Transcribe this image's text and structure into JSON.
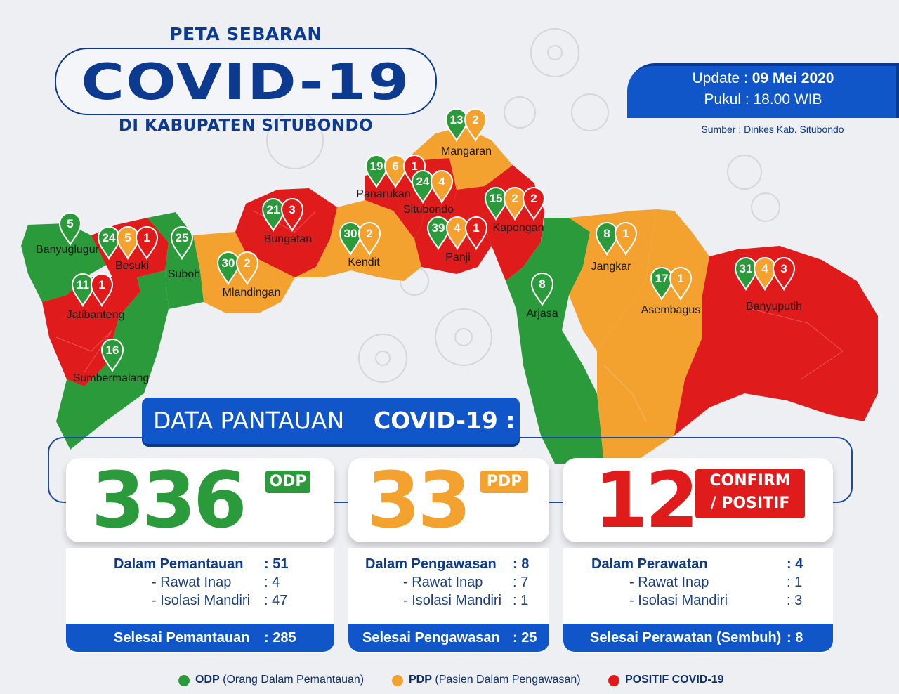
{
  "header": {
    "title_top": "PETA SEBARAN",
    "title_main": "COVID-19",
    "title_bottom": "DI KABUPATEN SITUBONDO"
  },
  "update": {
    "label": "Update : ",
    "date": "09 Mei 2020",
    "time_label": "Pukul : 18.00 WIB",
    "source": "Sumber : Dinkes Kab. Situbondo"
  },
  "colors": {
    "odp": "#2a9a3a",
    "pdp": "#f3a12f",
    "positif": "#e01b1b",
    "navy": "#0b3a8f",
    "blue": "#1156c9"
  },
  "districts": [
    {
      "name": "Banyuglugur",
      "status": "odp",
      "odp": "5"
    },
    {
      "name": "Besuki",
      "status": "positif",
      "odp": "24",
      "pdp": "5",
      "positif": "1"
    },
    {
      "name": "Suboh",
      "status": "odp",
      "odp": "25"
    },
    {
      "name": "Jatibanteng",
      "status": "positif",
      "odp": "11",
      "positif": "1"
    },
    {
      "name": "Sumbermalang",
      "status": "odp",
      "odp": "16"
    },
    {
      "name": "Mlandingan",
      "status": "pdp",
      "odp": "30",
      "pdp": "2"
    },
    {
      "name": "Bungatan",
      "status": "positif",
      "odp": "21",
      "positif": "3"
    },
    {
      "name": "Kendit",
      "status": "pdp",
      "odp": "30",
      "pdp": "2"
    },
    {
      "name": "Panarukan",
      "status": "positif",
      "odp": "19",
      "pdp": "6",
      "positif": "1"
    },
    {
      "name": "Situbondo",
      "status": "positif",
      "odp": "24",
      "pdp": "4"
    },
    {
      "name": "Mangaran",
      "status": "pdp",
      "odp": "13",
      "pdp": "2"
    },
    {
      "name": "Panji",
      "status": "positif",
      "odp": "39",
      "pdp": "4",
      "positif": "1"
    },
    {
      "name": "Kapongan",
      "status": "positif",
      "odp": "15",
      "pdp": "2",
      "positif": "2"
    },
    {
      "name": "Arjasa",
      "status": "odp",
      "odp": "8"
    },
    {
      "name": "Jangkar",
      "status": "pdp",
      "odp": "8",
      "pdp": "1"
    },
    {
      "name": "Asembagus",
      "status": "pdp",
      "odp": "17",
      "pdp": "1"
    },
    {
      "name": "Banyuputih",
      "status": "positif",
      "odp": "31",
      "pdp": "4",
      "positif": "3"
    }
  ],
  "panel": {
    "title_normal": "DATA PANTAUAN",
    "title_bold": "COVID-19 :"
  },
  "odp": {
    "total": "336",
    "tag": "ODP",
    "status_label": "Dalam Pemantauan",
    "status_value": ": 51",
    "inap_label": "- Rawat Inap",
    "inap_value": ": 4",
    "isolasi_label": "- Isolasi Mandiri",
    "isolasi_value": ": 47",
    "done_label": "Selesai Pemantauan",
    "done_value": ": 285"
  },
  "pdp": {
    "total": "33",
    "tag": "PDP",
    "status_label": "Dalam Pengawasan",
    "status_value": ": 8",
    "inap_label": "- Rawat Inap",
    "inap_value": ": 7",
    "isolasi_label": "- Isolasi Mandiri",
    "isolasi_value": ": 1",
    "done_label": "Selesai Pengawasan",
    "done_value": ": 25"
  },
  "positif": {
    "total": "12",
    "tag_1": "CONFIRM",
    "tag_2": "/ POSITIF",
    "status_label": "Dalam Perawatan",
    "status_value": ": 4",
    "inap_label": "- Rawat Inap",
    "inap_value": ": 1",
    "isolasi_label": "- Isolasi Mandiri",
    "isolasi_value": ": 3",
    "done_label": "Selesai Perawatan (Sembuh)",
    "done_value": ": 8"
  },
  "legend": {
    "odp_abbr": "ODP",
    "odp_full": "(Orang Dalam Pemantauan)",
    "pdp_abbr": "PDP",
    "pdp_full": "(Pasien Dalam Pengawasan)",
    "positif_label": "POSITIF COVID-19"
  }
}
